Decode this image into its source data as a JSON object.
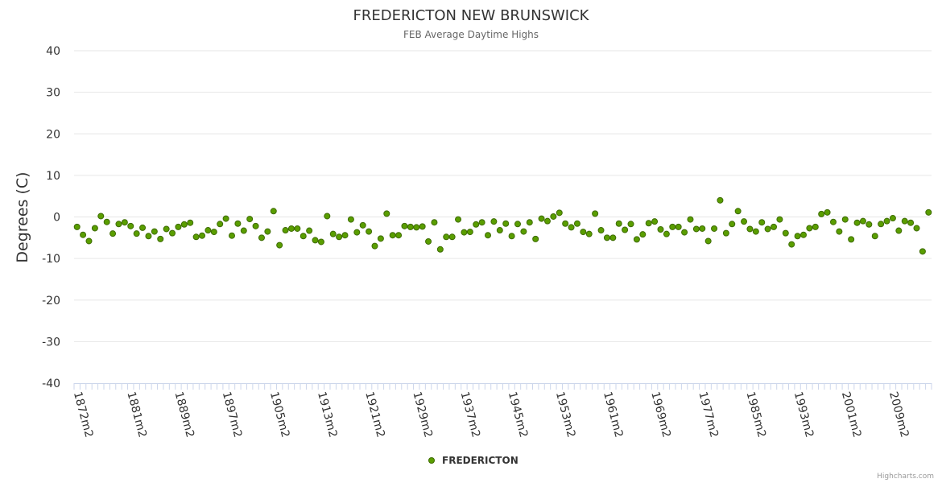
{
  "chart_data": {
    "type": "scatter",
    "title": "FREDERICTON NEW BRUNSWICK",
    "subtitle": "FEB Average Daytime Highs",
    "ylabel": "Degrees (C)",
    "ylim": [
      -40,
      40
    ],
    "yticks": [
      40,
      30,
      20,
      10,
      0,
      -10,
      -20,
      -30,
      -40
    ],
    "grid": true,
    "legend_placement": "bottom-center",
    "x_start_year": 1872,
    "xtick_labels": [
      "1872m2",
      "1881m2",
      "1889m2",
      "1897m2",
      "1905m2",
      "1913m2",
      "1921m2",
      "1929m2",
      "1937m2",
      "1945m2",
      "1953m2",
      "1961m2",
      "1969m2",
      "1977m2",
      "1985m2",
      "1993m2",
      "2001m2",
      "2009m2"
    ],
    "series": [
      {
        "name": "FREDERICTON",
        "color": "#5a9e00",
        "stroke": "#3d6b00",
        "values": [
          -2.4,
          -4.3,
          -5.8,
          -2.7,
          0.2,
          -1.2,
          -4.0,
          -1.7,
          -1.3,
          -2.2,
          -4.0,
          -2.6,
          -4.6,
          -3.5,
          -5.3,
          -2.9,
          -3.9,
          -2.4,
          -1.8,
          -1.4,
          -4.8,
          -4.5,
          -3.2,
          -3.6,
          -1.7,
          -0.4,
          -4.5,
          -1.6,
          -3.3,
          -0.5,
          -2.2,
          -5.0,
          -3.5,
          1.4,
          -6.8,
          -3.2,
          -2.8,
          -2.8,
          -4.6,
          -3.3,
          -5.6,
          -6.0,
          0.2,
          -4.1,
          -4.8,
          -4.4,
          -0.6,
          -3.7,
          -2.0,
          -3.5,
          -7.0,
          -5.2,
          0.8,
          -4.4,
          -4.4,
          -2.2,
          -2.4,
          -2.5,
          -2.3,
          -5.9,
          -1.3,
          -7.8,
          -4.8,
          -4.8,
          -0.6,
          -3.7,
          -3.6,
          -1.8,
          -1.3,
          -4.4,
          -1.1,
          -3.2,
          -1.6,
          -4.6,
          -1.7,
          -3.5,
          -1.3,
          -5.3,
          -0.4,
          -1.0,
          0.1,
          1.0,
          -1.6,
          -2.5,
          -1.6,
          -3.6,
          -4.1,
          0.8,
          -3.2,
          -5.0,
          -5.0,
          -1.6,
          -3.1,
          -1.7,
          -5.4,
          -4.2,
          -1.5,
          -1.1,
          -3.0,
          -4.1,
          -2.4,
          -2.4,
          -3.7,
          -0.6,
          -2.9,
          -2.8,
          -5.8,
          -2.8,
          4.0,
          -3.9,
          -1.7,
          1.4,
          -1.1,
          -2.9,
          -3.5,
          -1.3,
          -2.9,
          -2.4,
          -0.6,
          -3.9,
          -6.6,
          -4.6,
          -4.3,
          -2.7,
          -2.4,
          0.7,
          1.1,
          -1.2,
          -3.5,
          -0.6,
          -5.4,
          -1.4,
          -1.0,
          -1.8,
          -4.6,
          -1.7,
          -1.0,
          -0.3,
          -3.3,
          -1.0,
          -1.4,
          -2.7,
          -8.3,
          1.1
        ]
      }
    ]
  },
  "credits": "Highcharts.com"
}
